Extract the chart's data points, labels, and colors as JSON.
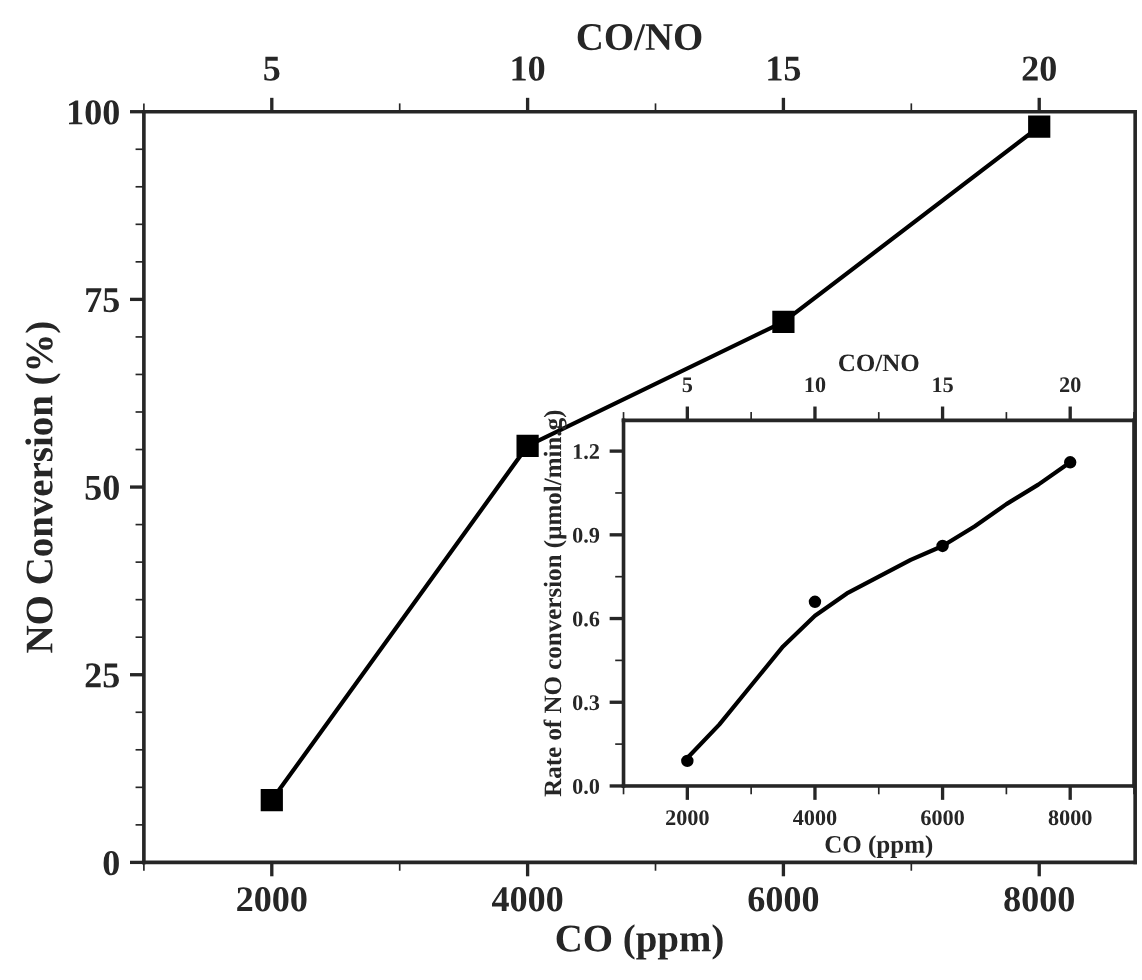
{
  "chart_data": [
    {
      "type": "line",
      "xlabel": "CO (ppm)",
      "ylabel": "NO Conversion (%)",
      "x2label": "CO/NO",
      "x": [
        2000,
        4000,
        6000,
        8000
      ],
      "xlim": [
        1000,
        8750
      ],
      "xticks": [
        2000,
        4000,
        6000,
        8000
      ],
      "x2lim": [
        2.5,
        21.875
      ],
      "x2ticks": [
        5,
        10,
        15,
        20
      ],
      "ylim": [
        0,
        100
      ],
      "yticks": [
        0,
        25,
        50,
        75,
        100
      ],
      "marker": "square",
      "line_style": "solid",
      "grid": false,
      "legend": false,
      "series": [
        {
          "color": "#000000",
          "values": [
            8.3,
            55.5,
            72,
            98
          ]
        }
      ]
    },
    {
      "type": "scatter",
      "xlabel": "CO (ppm)",
      "ylabel": "Rate of NO conversion (µmol/min.g)",
      "x2label": "CO/NO",
      "xlim": [
        1000,
        9000
      ],
      "xticks": [
        2000,
        4000,
        6000,
        8000
      ],
      "x2lim": [
        2.5,
        22.5
      ],
      "x2ticks": [
        5,
        10,
        15,
        20
      ],
      "ylim": [
        0,
        1.31
      ],
      "yticks": [
        {
          "value": 0,
          "label": "0.0"
        },
        0.3,
        0.6,
        0.9,
        1.2
      ],
      "grid": false,
      "legend": false,
      "series": [
        {
          "type": "scatter",
          "marker": "circle",
          "color": "#000000",
          "x": [
            2000,
            4000,
            6000,
            8000
          ],
          "values": [
            0.09,
            0.66,
            0.86,
            1.16
          ]
        },
        {
          "type": "line",
          "marker": "none",
          "color": "#000000",
          "x": [
            2000,
            2500,
            3000,
            3500,
            4000,
            4500,
            5000,
            5500,
            6000,
            6500,
            7000,
            7500,
            8000
          ],
          "values": [
            0.1,
            0.22,
            0.36,
            0.5,
            0.61,
            0.69,
            0.75,
            0.81,
            0.86,
            0.93,
            1.01,
            1.08,
            1.16
          ]
        }
      ]
    }
  ]
}
